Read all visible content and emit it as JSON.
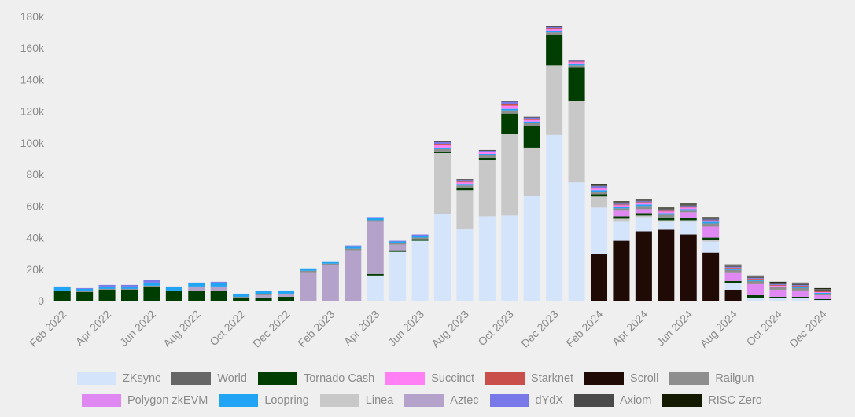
{
  "chart_data": {
    "type": "bar",
    "stacked": true,
    "title": "",
    "xlabel": "",
    "ylabel": "",
    "ylim": [
      0,
      180000
    ],
    "yticks": [
      0,
      20000,
      40000,
      60000,
      80000,
      100000,
      120000,
      140000,
      160000,
      180000
    ],
    "ytick_labels": [
      "0",
      "20k",
      "40k",
      "60k",
      "80k",
      "100k",
      "120k",
      "140k",
      "160k",
      "180k"
    ],
    "grid": false,
    "legend_position": "bottom",
    "categories": [
      "Feb 2022",
      "Mar 2022",
      "Apr 2022",
      "May 2022",
      "Jun 2022",
      "Jul 2022",
      "Aug 2022",
      "Sep 2022",
      "Oct 2022",
      "Nov 2022",
      "Dec 2022",
      "Jan 2023",
      "Feb 2023",
      "Mar 2023",
      "Apr 2023",
      "May 2023",
      "Jun 2023",
      "Jul 2023",
      "Aug 2023",
      "Sep 2023",
      "Oct 2023",
      "Nov 2023",
      "Dec 2023",
      "Jan 2024",
      "Feb 2024",
      "Mar 2024",
      "Apr 2024",
      "May 2024",
      "Jun 2024",
      "Jul 2024",
      "Aug 2024",
      "Sep 2024",
      "Oct 2024",
      "Nov 2024",
      "Dec 2024"
    ],
    "xtick_labels": [
      "Feb 2022",
      "",
      "Apr 2022",
      "",
      "Jun 2022",
      "",
      "Aug 2022",
      "",
      "Oct 2022",
      "",
      "Dec 2022",
      "",
      "Feb 2023",
      "",
      "Apr 2023",
      "",
      "Jun 2023",
      "",
      "Aug 2023",
      "",
      "Oct 2023",
      "",
      "Dec 2023",
      "",
      "Feb 2024",
      "",
      "Apr 2024",
      "",
      "Jun 2024",
      "",
      "Aug 2024",
      "",
      "Oct 2024",
      "",
      "Dec 2024"
    ],
    "series": [
      {
        "name": "Scroll",
        "color": "#1f0a05",
        "values": [
          0,
          0,
          0,
          0,
          0,
          0,
          0,
          0,
          0,
          0,
          0,
          0,
          0,
          0,
          0,
          0,
          0,
          0,
          0,
          0,
          0,
          0,
          0,
          0,
          29500,
          38000,
          44000,
          45000,
          42000,
          30500,
          7000,
          0,
          0,
          0,
          0
        ]
      },
      {
        "name": "ZKsync",
        "color": "#d4e4fb",
        "values": [
          0,
          0,
          0,
          0,
          0,
          0,
          0,
          0,
          0,
          0,
          0,
          0,
          0,
          0,
          16000,
          31000,
          38000,
          55000,
          45500,
          53500,
          54000,
          66500,
          105000,
          75000,
          29500,
          12000,
          9000,
          5000,
          8000,
          7000,
          4000,
          2000,
          1500,
          1500,
          500
        ]
      },
      {
        "name": "Linea",
        "color": "#c8c8c8",
        "values": [
          0,
          0,
          0,
          0,
          0,
          0,
          0,
          0,
          0,
          0,
          0,
          0,
          0,
          0,
          0,
          0,
          0,
          38500,
          24500,
          35500,
          51500,
          30500,
          44000,
          51500,
          7000,
          2000,
          1000,
          1000,
          1000,
          1000,
          0,
          0,
          0,
          0,
          0
        ]
      },
      {
        "name": "Tornado Cash",
        "color": "#003d00",
        "values": [
          6000,
          5500,
          7000,
          7000,
          8500,
          6000,
          6000,
          6000,
          2000,
          2000,
          2500,
          0,
          0,
          0,
          1000,
          1000,
          1000,
          1000,
          1500,
          1500,
          13000,
          13500,
          19500,
          21500,
          1500,
          1500,
          1500,
          1500,
          1500,
          1500,
          1500,
          1500,
          1000,
          1000,
          500
        ]
      },
      {
        "name": "Polygon zkEVM",
        "color": "#e088f2",
        "values": [
          0,
          0,
          0,
          0,
          0,
          0,
          0,
          0,
          0,
          0,
          0,
          0,
          0,
          0,
          0,
          0,
          0,
          0,
          0,
          0,
          0,
          0,
          0,
          0,
          0,
          3500,
          2500,
          0,
          3500,
          7000,
          5500,
          7000,
          4500,
          4000,
          2500
        ]
      },
      {
        "name": "Aztec",
        "color": "#b4a2cb",
        "values": [
          0,
          0,
          0,
          0,
          0,
          0,
          2500,
          2500,
          0,
          1500,
          1500,
          18000,
          22500,
          32000,
          33000,
          3500,
          0,
          0,
          0,
          0,
          0,
          0,
          0,
          0,
          0,
          0,
          0,
          0,
          0,
          0,
          0,
          0,
          0,
          0,
          0
        ]
      },
      {
        "name": "Railgun",
        "color": "#8e8e8e",
        "values": [
          500,
          500,
          500,
          500,
          1000,
          500,
          500,
          500,
          500,
          500,
          500,
          1000,
          1000,
          1000,
          1000,
          1000,
          1000,
          1500,
          1500,
          1500,
          2000,
          2000,
          1500,
          1000,
          1500,
          1500,
          2000,
          2000,
          1000,
          2000,
          1500,
          2000,
          1500,
          1500,
          1000
        ]
      },
      {
        "name": "Loopring",
        "color": "#20a4f3",
        "values": [
          2000,
          1500,
          1500,
          1500,
          2000,
          2000,
          2000,
          2500,
          2000,
          2000,
          2000,
          1500,
          1500,
          1500,
          1500,
          1000,
          1000,
          1000,
          1000,
          1000,
          1000,
          1000,
          1000,
          1000,
          1000,
          1000,
          1000,
          1000,
          1000,
          1000,
          500,
          500,
          500,
          500,
          500
        ]
      },
      {
        "name": "Succinct",
        "color": "#ff7ff5",
        "values": [
          0,
          0,
          0,
          0,
          0,
          0,
          0,
          0,
          0,
          0,
          0,
          0,
          0,
          0,
          0,
          0,
          0,
          1500,
          1000,
          1000,
          2000,
          1000,
          1000,
          1000,
          1000,
          1000,
          1000,
          1000,
          1000,
          500,
          500,
          500,
          500,
          500,
          500
        ]
      },
      {
        "name": "Starknet",
        "color": "#c9504a",
        "values": [
          0,
          0,
          0,
          0,
          0,
          0,
          0,
          0,
          0,
          0,
          0,
          0,
          0,
          0,
          0,
          0,
          0,
          500,
          500,
          500,
          1000,
          500,
          500,
          500,
          500,
          500,
          500,
          500,
          500,
          500,
          500,
          500,
          500,
          500,
          500
        ]
      },
      {
        "name": "dYdX",
        "color": "#7878e8",
        "values": [
          500,
          500,
          1000,
          1000,
          1500,
          500,
          500,
          500,
          0,
          0,
          0,
          0,
          0,
          500,
          500,
          500,
          1000,
          1500,
          1000,
          500,
          1500,
          1000,
          1000,
          500,
          1000,
          500,
          500,
          500,
          500,
          500,
          500,
          500,
          500,
          500,
          500
        ]
      },
      {
        "name": "Axiom",
        "color": "#4a4a4a",
        "values": [
          0,
          0,
          0,
          0,
          0,
          0,
          0,
          0,
          0,
          0,
          0,
          0,
          0,
          0,
          0,
          0,
          0,
          500,
          500,
          500,
          500,
          500,
          500,
          500,
          500,
          500,
          500,
          500,
          500,
          500,
          500,
          500,
          500,
          500,
          500
        ]
      },
      {
        "name": "World",
        "color": "#666666",
        "values": [
          0,
          0,
          0,
          0,
          0,
          0,
          0,
          0,
          0,
          0,
          0,
          0,
          0,
          0,
          0,
          0,
          0,
          0,
          0,
          0,
          0,
          0,
          0,
          0,
          500,
          500,
          500,
          500,
          500,
          500,
          500,
          500,
          500,
          500,
          500
        ]
      },
      {
        "name": "RISC Zero",
        "color": "#141a00",
        "values": [
          0,
          0,
          0,
          0,
          0,
          0,
          0,
          0,
          0,
          0,
          0,
          0,
          0,
          0,
          0,
          0,
          0,
          0,
          0,
          0,
          0,
          0,
          0,
          0,
          500,
          500,
          500,
          500,
          500,
          500,
          500,
          500,
          500,
          500,
          500
        ]
      }
    ]
  },
  "legend": {
    "rows": [
      [
        {
          "label": "ZKsync",
          "color": "#d4e4fb"
        },
        {
          "label": "World",
          "color": "#666666"
        },
        {
          "label": "Tornado Cash",
          "color": "#003d00"
        },
        {
          "label": "Succinct",
          "color": "#ff7ff5"
        },
        {
          "label": "Starknet",
          "color": "#c9504a"
        },
        {
          "label": "Scroll",
          "color": "#1f0a05"
        },
        {
          "label": "Railgun",
          "color": "#8e8e8e"
        }
      ],
      [
        {
          "label": "Polygon zkEVM",
          "color": "#e088f2"
        },
        {
          "label": "Loopring",
          "color": "#20a4f3"
        },
        {
          "label": "Linea",
          "color": "#c8c8c8"
        },
        {
          "label": "Aztec",
          "color": "#b4a2cb"
        },
        {
          "label": "dYdX",
          "color": "#7878e8"
        },
        {
          "label": "Axiom",
          "color": "#4a4a4a"
        },
        {
          "label": "RISC Zero",
          "color": "#141a00"
        }
      ]
    ]
  }
}
